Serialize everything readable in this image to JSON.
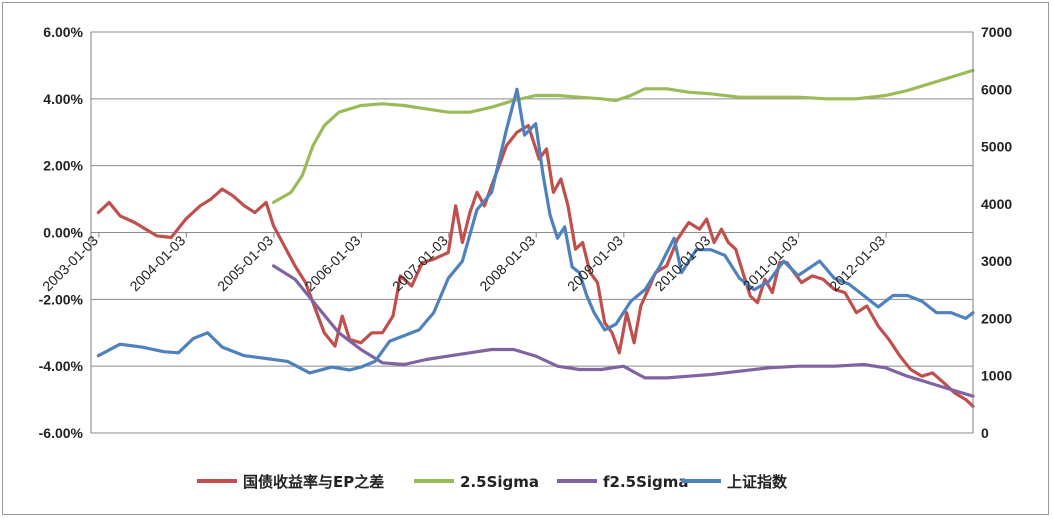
{
  "chart_data": {
    "type": "line",
    "title": "",
    "xlabel": "",
    "ylabel": "",
    "x_ticks": [
      "2003-01-03",
      "2004-01-03",
      "2005-01-03",
      "2006-01-03",
      "2007-01-03",
      "2008-01-03",
      "2009-01-03",
      "2010-01-03",
      "2011-01-03",
      "2012-01-03"
    ],
    "x_range": [
      "2002-12-01",
      "2012-12-31"
    ],
    "y_left": {
      "ticks": [
        "6.00%",
        "4.00%",
        "2.00%",
        "0.00%",
        "-2.00%",
        "-4.00%",
        "-6.00%"
      ],
      "ylim": [
        -6,
        6
      ],
      "unit": "%"
    },
    "y_right": {
      "ticks": [
        "7000",
        "6000",
        "5000",
        "4000",
        "3000",
        "2000",
        "1000",
        "0"
      ],
      "ylim": [
        0,
        7000
      ]
    },
    "grid": "horizontal",
    "legend_position": "bottom",
    "series": [
      {
        "name": "国债收益率与EP之差",
        "axis": "left",
        "color": "#c0504d",
        "points": [
          [
            "2003-01-01",
            0.6
          ],
          [
            "2003-02-15",
            0.9
          ],
          [
            "2003-04-01",
            0.5
          ],
          [
            "2003-06-01",
            0.3
          ],
          [
            "2003-09-01",
            -0.1
          ],
          [
            "2003-11-01",
            -0.15
          ],
          [
            "2004-01-01",
            0.4
          ],
          [
            "2004-03-01",
            0.8
          ],
          [
            "2004-04-15",
            1.0
          ],
          [
            "2004-06-01",
            1.3
          ],
          [
            "2004-07-15",
            1.1
          ],
          [
            "2004-09-01",
            0.8
          ],
          [
            "2004-10-15",
            0.6
          ],
          [
            "2004-12-01",
            0.9
          ],
          [
            "2005-01-01",
            0.2
          ],
          [
            "2005-02-15",
            -0.4
          ],
          [
            "2005-04-01",
            -1.0
          ],
          [
            "2005-05-15",
            -1.5
          ],
          [
            "2005-06-15",
            -2.1
          ],
          [
            "2005-08-01",
            -3.0
          ],
          [
            "2005-09-15",
            -3.4
          ],
          [
            "2005-10-15",
            -2.5
          ],
          [
            "2005-11-15",
            -3.2
          ],
          [
            "2006-01-01",
            -3.3
          ],
          [
            "2006-02-15",
            -3.0
          ],
          [
            "2006-04-01",
            -3.0
          ],
          [
            "2006-05-15",
            -2.5
          ],
          [
            "2006-06-15",
            -1.3
          ],
          [
            "2006-08-01",
            -1.6
          ],
          [
            "2006-09-15",
            -0.9
          ],
          [
            "2006-11-01",
            -0.8
          ],
          [
            "2007-01-01",
            -0.6
          ],
          [
            "2007-02-01",
            0.8
          ],
          [
            "2007-03-01",
            -0.3
          ],
          [
            "2007-04-01",
            0.6
          ],
          [
            "2007-05-01",
            1.2
          ],
          [
            "2007-06-01",
            0.8
          ],
          [
            "2007-07-01",
            1.4
          ],
          [
            "2007-08-01",
            2.0
          ],
          [
            "2007-09-01",
            2.6
          ],
          [
            "2007-10-15",
            3.0
          ],
          [
            "2007-12-01",
            3.2
          ],
          [
            "2008-01-15",
            2.2
          ],
          [
            "2008-02-15",
            2.5
          ],
          [
            "2008-03-15",
            1.2
          ],
          [
            "2008-04-15",
            1.6
          ],
          [
            "2008-05-15",
            0.8
          ],
          [
            "2008-06-15",
            -0.5
          ],
          [
            "2008-07-15",
            -0.3
          ],
          [
            "2008-08-15",
            -1.2
          ],
          [
            "2008-09-15",
            -1.5
          ],
          [
            "2008-10-15",
            -2.7
          ],
          [
            "2008-11-15",
            -3.0
          ],
          [
            "2008-12-15",
            -3.6
          ],
          [
            "2009-01-15",
            -2.4
          ],
          [
            "2009-02-15",
            -3.3
          ],
          [
            "2009-03-15",
            -2.2
          ],
          [
            "2009-04-15",
            -1.7
          ],
          [
            "2009-05-15",
            -1.2
          ],
          [
            "2009-07-01",
            -1.0
          ],
          [
            "2009-08-15",
            -0.2
          ],
          [
            "2009-10-01",
            0.3
          ],
          [
            "2009-11-15",
            0.1
          ],
          [
            "2009-12-15",
            0.4
          ],
          [
            "2010-01-15",
            -0.3
          ],
          [
            "2010-02-15",
            0.1
          ],
          [
            "2010-03-15",
            -0.3
          ],
          [
            "2010-04-15",
            -0.5
          ],
          [
            "2010-05-15",
            -1.2
          ],
          [
            "2010-06-15",
            -1.9
          ],
          [
            "2010-07-15",
            -2.1
          ],
          [
            "2010-08-15",
            -1.4
          ],
          [
            "2010-09-15",
            -1.8
          ],
          [
            "2010-10-15",
            -0.9
          ],
          [
            "2010-11-15",
            -0.9
          ],
          [
            "2010-12-15",
            -1.2
          ],
          [
            "2011-01-15",
            -1.5
          ],
          [
            "2011-03-01",
            -1.3
          ],
          [
            "2011-04-15",
            -1.4
          ],
          [
            "2011-06-01",
            -1.7
          ],
          [
            "2011-07-15",
            -1.8
          ],
          [
            "2011-09-01",
            -2.4
          ],
          [
            "2011-10-15",
            -2.2
          ],
          [
            "2011-12-01",
            -2.8
          ],
          [
            "2012-01-15",
            -3.2
          ],
          [
            "2012-03-01",
            -3.7
          ],
          [
            "2012-04-15",
            -4.1
          ],
          [
            "2012-06-01",
            -4.3
          ],
          [
            "2012-07-15",
            -4.2
          ],
          [
            "2012-09-01",
            -4.5
          ],
          [
            "2012-10-15",
            -4.8
          ],
          [
            "2012-12-01",
            -5.0
          ],
          [
            "2012-12-31",
            -5.2
          ]
        ]
      },
      {
        "name": "2.5Sigma",
        "axis": "left",
        "color": "#9bbb59",
        "points": [
          [
            "2005-01-01",
            0.9
          ],
          [
            "2005-03-15",
            1.2
          ],
          [
            "2005-05-01",
            1.7
          ],
          [
            "2005-06-15",
            2.6
          ],
          [
            "2005-08-01",
            3.2
          ],
          [
            "2005-10-01",
            3.6
          ],
          [
            "2006-01-01",
            3.8
          ],
          [
            "2006-04-01",
            3.85
          ],
          [
            "2006-07-01",
            3.8
          ],
          [
            "2006-10-01",
            3.7
          ],
          [
            "2007-01-01",
            3.6
          ],
          [
            "2007-04-01",
            3.6
          ],
          [
            "2007-07-01",
            3.75
          ],
          [
            "2007-10-01",
            3.95
          ],
          [
            "2008-01-01",
            4.1
          ],
          [
            "2008-04-01",
            4.1
          ],
          [
            "2008-07-01",
            4.05
          ],
          [
            "2008-10-01",
            4.0
          ],
          [
            "2008-12-01",
            3.95
          ],
          [
            "2009-02-01",
            4.1
          ],
          [
            "2009-04-01",
            4.3
          ],
          [
            "2009-07-01",
            4.3
          ],
          [
            "2009-10-01",
            4.2
          ],
          [
            "2010-01-01",
            4.15
          ],
          [
            "2010-05-01",
            4.05
          ],
          [
            "2010-09-01",
            4.05
          ],
          [
            "2011-01-01",
            4.05
          ],
          [
            "2011-05-01",
            4.0
          ],
          [
            "2011-09-01",
            4.0
          ],
          [
            "2012-01-01",
            4.1
          ],
          [
            "2012-04-01",
            4.25
          ],
          [
            "2012-07-01",
            4.45
          ],
          [
            "2012-10-01",
            4.65
          ],
          [
            "2012-12-31",
            4.85
          ]
        ]
      },
      {
        "name": "f2.5Sigma",
        "axis": "left",
        "color": "#8064a2",
        "points": [
          [
            "2005-01-01",
            -1.0
          ],
          [
            "2005-04-01",
            -1.4
          ],
          [
            "2005-07-01",
            -2.2
          ],
          [
            "2005-10-01",
            -3.0
          ],
          [
            "2006-01-01",
            -3.5
          ],
          [
            "2006-04-01",
            -3.9
          ],
          [
            "2006-07-01",
            -3.95
          ],
          [
            "2006-10-01",
            -3.8
          ],
          [
            "2007-01-01",
            -3.7
          ],
          [
            "2007-04-01",
            -3.6
          ],
          [
            "2007-07-01",
            -3.5
          ],
          [
            "2007-10-01",
            -3.5
          ],
          [
            "2008-01-01",
            -3.7
          ],
          [
            "2008-04-01",
            -4.0
          ],
          [
            "2008-07-01",
            -4.1
          ],
          [
            "2008-10-01",
            -4.1
          ],
          [
            "2009-01-01",
            -4.0
          ],
          [
            "2009-04-01",
            -4.35
          ],
          [
            "2009-07-01",
            -4.35
          ],
          [
            "2009-10-01",
            -4.3
          ],
          [
            "2010-01-01",
            -4.25
          ],
          [
            "2010-05-01",
            -4.15
          ],
          [
            "2010-09-01",
            -4.05
          ],
          [
            "2011-01-01",
            -4.0
          ],
          [
            "2011-06-01",
            -4.0
          ],
          [
            "2011-10-01",
            -3.95
          ],
          [
            "2012-01-01",
            -4.05
          ],
          [
            "2012-04-01",
            -4.3
          ],
          [
            "2012-07-01",
            -4.5
          ],
          [
            "2012-10-01",
            -4.7
          ],
          [
            "2012-12-31",
            -4.9
          ]
        ]
      },
      {
        "name": "上证指数",
        "axis": "right",
        "color": "#4f81bd",
        "points": [
          [
            "2003-01-01",
            1350
          ],
          [
            "2003-04-01",
            1550
          ],
          [
            "2003-07-01",
            1500
          ],
          [
            "2003-10-01",
            1420
          ],
          [
            "2003-12-01",
            1400
          ],
          [
            "2004-02-01",
            1650
          ],
          [
            "2004-04-01",
            1750
          ],
          [
            "2004-06-01",
            1500
          ],
          [
            "2004-09-01",
            1350
          ],
          [
            "2004-12-01",
            1300
          ],
          [
            "2005-03-01",
            1250
          ],
          [
            "2005-06-01",
            1050
          ],
          [
            "2005-09-01",
            1150
          ],
          [
            "2005-11-15",
            1100
          ],
          [
            "2006-01-01",
            1150
          ],
          [
            "2006-03-01",
            1250
          ],
          [
            "2006-05-01",
            1600
          ],
          [
            "2006-07-01",
            1700
          ],
          [
            "2006-09-01",
            1800
          ],
          [
            "2006-11-01",
            2100
          ],
          [
            "2007-01-01",
            2700
          ],
          [
            "2007-03-01",
            3000
          ],
          [
            "2007-05-01",
            3900
          ],
          [
            "2007-07-01",
            4200
          ],
          [
            "2007-09-01",
            5300
          ],
          [
            "2007-10-15",
            6000
          ],
          [
            "2007-11-15",
            5200
          ],
          [
            "2008-01-01",
            5400
          ],
          [
            "2008-02-01",
            4500
          ],
          [
            "2008-03-01",
            3800
          ],
          [
            "2008-04-01",
            3400
          ],
          [
            "2008-05-01",
            3600
          ],
          [
            "2008-06-01",
            2900
          ],
          [
            "2008-07-01",
            2800
          ],
          [
            "2008-08-01",
            2400
          ],
          [
            "2008-09-01",
            2100
          ],
          [
            "2008-10-15",
            1800
          ],
          [
            "2008-12-01",
            1900
          ],
          [
            "2009-02-01",
            2300
          ],
          [
            "2009-04-01",
            2500
          ],
          [
            "2009-06-01",
            2900
          ],
          [
            "2009-08-01",
            3400
          ],
          [
            "2009-09-01",
            2800
          ],
          [
            "2009-11-01",
            3200
          ],
          [
            "2010-01-01",
            3200
          ],
          [
            "2010-03-01",
            3100
          ],
          [
            "2010-05-01",
            2700
          ],
          [
            "2010-07-01",
            2500
          ],
          [
            "2010-09-01",
            2650
          ],
          [
            "2010-11-01",
            3000
          ],
          [
            "2011-01-01",
            2750
          ],
          [
            "2011-04-01",
            3000
          ],
          [
            "2011-06-01",
            2700
          ],
          [
            "2011-08-01",
            2600
          ],
          [
            "2011-10-01",
            2400
          ],
          [
            "2011-12-01",
            2200
          ],
          [
            "2012-02-01",
            2400
          ],
          [
            "2012-04-01",
            2400
          ],
          [
            "2012-06-01",
            2300
          ],
          [
            "2012-08-01",
            2100
          ],
          [
            "2012-10-01",
            2100
          ],
          [
            "2012-12-01",
            2000
          ],
          [
            "2012-12-31",
            2100
          ]
        ]
      }
    ]
  }
}
